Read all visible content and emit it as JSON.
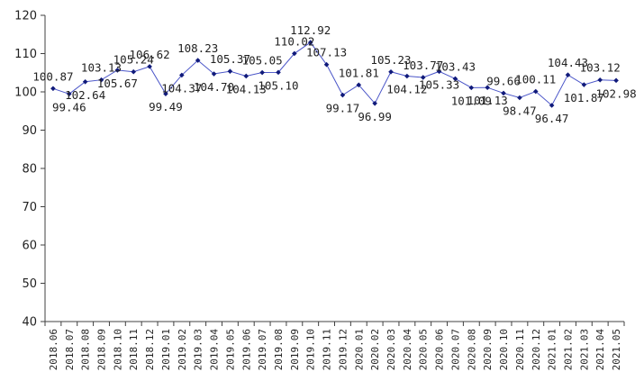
{
  "chart_data": {
    "type": "line",
    "categories": [
      "2018.06",
      "2018.07",
      "2018.08",
      "2018.09",
      "2018.10",
      "2018.11",
      "2018.12",
      "2019.01",
      "2019.02",
      "2019.03",
      "2019.04",
      "2019.05",
      "2019.06",
      "2019.07",
      "2019.08",
      "2019.09",
      "2019.10",
      "2019.11",
      "2019.12",
      "2020.01",
      "2020.02",
      "2020.03",
      "2020.04",
      "2020.05",
      "2020.06",
      "2020.07",
      "2020.08",
      "2020.09",
      "2020.10",
      "2020.11",
      "2020.12",
      "2021.01",
      "2021.02",
      "2021.03",
      "2021.04",
      "2021.05"
    ],
    "values": [
      100.87,
      99.46,
      102.64,
      103.13,
      105.67,
      105.24,
      106.62,
      99.49,
      104.37,
      108.23,
      104.7,
      105.37,
      104.13,
      105.05,
      105.1,
      110.02,
      112.92,
      107.13,
      99.17,
      101.81,
      96.99,
      105.23,
      104.12,
      103.77,
      105.33,
      103.43,
      101.09,
      101.13,
      99.66,
      98.47,
      100.11,
      96.47,
      104.43,
      101.87,
      103.12,
      102.98
    ],
    "label_side": [
      "above",
      "below",
      "below",
      "above",
      "below",
      "above",
      "above",
      "below",
      "below",
      "above",
      "below",
      "above",
      "below",
      "above",
      "below",
      "above",
      "above",
      "above",
      "below",
      "above",
      "below",
      "above",
      "below",
      "above",
      "below",
      "above",
      "below",
      "below",
      "above",
      "below",
      "above",
      "below",
      "above",
      "below",
      "above",
      "below"
    ],
    "y_ticks": [
      "40",
      "50",
      "60",
      "70",
      "80",
      "90",
      "100",
      "110",
      "120"
    ],
    "ylim": [
      40,
      120
    ],
    "title": "",
    "xlabel": "",
    "ylabel": "",
    "grid": false,
    "legend": "none",
    "colors": {
      "line": "#4a55c8",
      "marker": "#101a7a",
      "axis": "#404040",
      "text": "#222222"
    }
  }
}
